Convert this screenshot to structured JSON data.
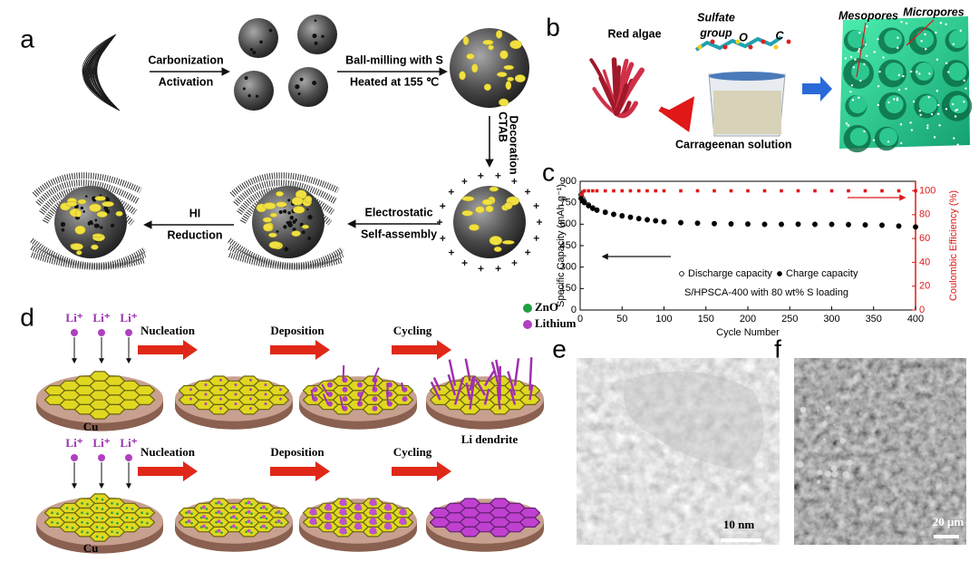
{
  "panel_a": {
    "label": "a",
    "carbonization": "Carbonization",
    "activation": "Activation",
    "ball_milling": "Ball-milling with S",
    "heated": "Heated at 155 ℃",
    "ctab": "CTAB",
    "decoration": "Decoration",
    "electrostatic": "Electrostatic",
    "self_assembly": "Self-assembly",
    "hi": "HI",
    "reduction": "Reduction"
  },
  "panel_b": {
    "label": "b",
    "red_algae": "Red algae",
    "sulfate": "Sulfate",
    "group": "group",
    "atom_o": "O",
    "atom_c": "C",
    "solution": "Carrageenan solution",
    "mesopores": "Mesopores",
    "micropores": "Micropores"
  },
  "chart_data": {
    "type": "scatter",
    "label": "c",
    "x_label": "Cycle Number",
    "y_label": "Specific Capacity (mAh g⁻¹)",
    "y2_label": "Coulombic Efficiency (%)",
    "annotation": "S/HPSCA-400 with 80 wt% S loading",
    "x": [
      1,
      3,
      5,
      10,
      15,
      20,
      30,
      40,
      50,
      60,
      70,
      80,
      90,
      100,
      120,
      140,
      160,
      180,
      200,
      220,
      240,
      260,
      280,
      300,
      320,
      340,
      360,
      380,
      400
    ],
    "series": [
      {
        "name": "Discharge capacity",
        "color": "#000000",
        "marker": "circle-open",
        "values": [
          805,
          780,
          760,
          735,
          715,
          700,
          685,
          670,
          660,
          650,
          640,
          632,
          625,
          618,
          612,
          608,
          605,
          603,
          602,
          600,
          600,
          601,
          600,
          600,
          598,
          596,
          594,
          588,
          582
        ]
      },
      {
        "name": "Charge capacity",
        "color": "#000000",
        "marker": "circle",
        "values": [
          780,
          765,
          750,
          728,
          710,
          697,
          682,
          668,
          657,
          648,
          638,
          630,
          623,
          616,
          610,
          606,
          603,
          601,
          600,
          598,
          598,
          599,
          598,
          598,
          596,
          594,
          592,
          586,
          580
        ]
      },
      {
        "color": "#e01818",
        "marker": "square",
        "axis": "y2",
        "values": [
          97,
          99,
          100,
          100,
          100,
          100,
          100,
          100,
          100,
          100,
          100,
          100,
          100,
          100,
          100,
          100,
          100,
          100,
          100,
          100,
          100,
          100,
          100,
          100,
          100,
          100,
          100,
          100,
          100
        ]
      }
    ],
    "xlim": [
      0,
      400
    ],
    "xticks": [
      0,
      50,
      100,
      150,
      200,
      250,
      300,
      350,
      400
    ],
    "ylim": [
      0,
      900
    ],
    "yticks": [
      0,
      150,
      300,
      450,
      600,
      750,
      900
    ],
    "y2lim": [
      0,
      108
    ],
    "y2ticks": [
      0,
      20,
      40,
      60,
      80,
      100
    ]
  },
  "panel_d": {
    "label": "d",
    "legend": [
      "ZnO",
      "Lithium"
    ],
    "ion": [
      "Li⁺",
      "Li⁺",
      "Li⁺",
      "Li⁺",
      "Li⁺",
      "Li⁺"
    ],
    "steps_top": [
      "Nucleation",
      "Deposition",
      "Cycling"
    ],
    "steps_bottom": [
      "Nucleation",
      "Deposition",
      "Cycling"
    ],
    "substrate": [
      "Cu",
      "Cu"
    ],
    "dendrite": "Li dendrite"
  },
  "panel_e": {
    "label": "e",
    "scale": "10 nm"
  },
  "panel_f": {
    "label": "f",
    "scale": "20 μm"
  }
}
